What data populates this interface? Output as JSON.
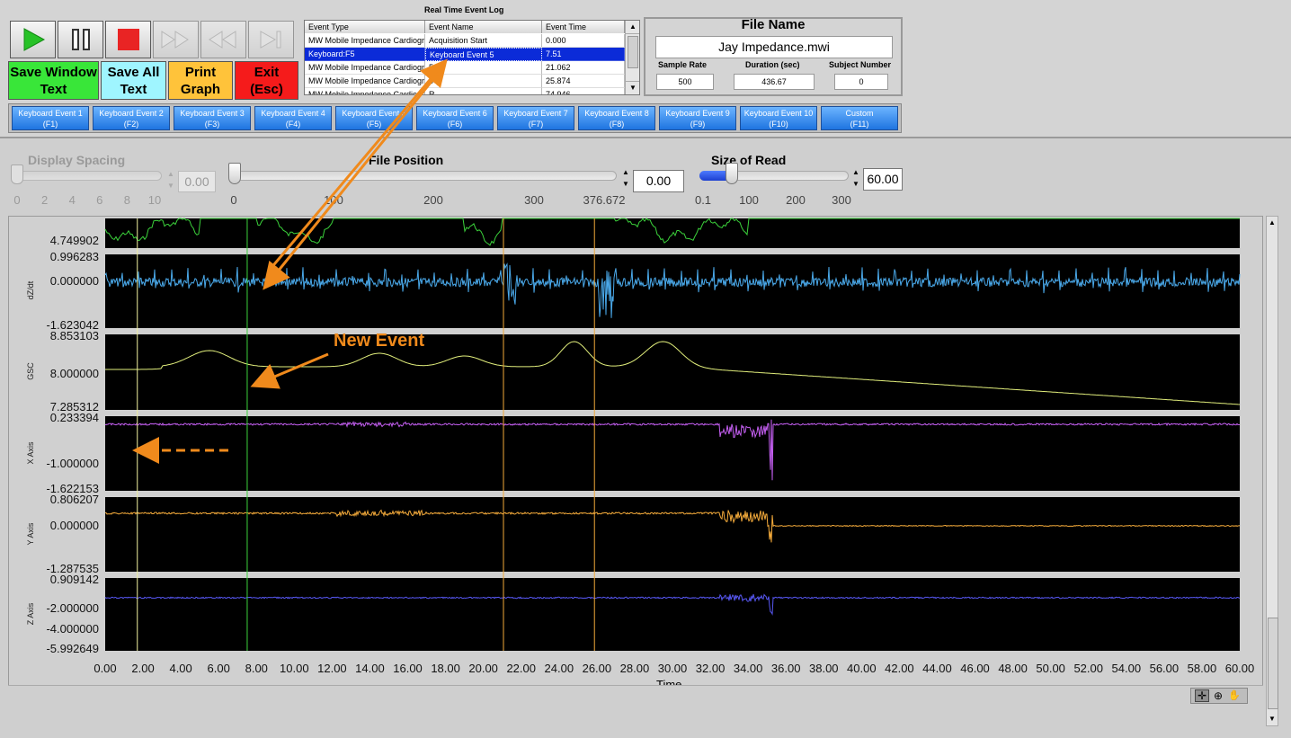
{
  "toolbar": {
    "play_icon": "play-icon",
    "pause_icon": "pause-icon",
    "stop_icon": "stop-icon",
    "ff_icon": "fast-forward-icon",
    "rw_icon": "rewind-icon",
    "end_icon": "skip-end-icon",
    "save_window_text": "Save Window Text",
    "save_all_text": "Save All Text",
    "print_graph": "Print Graph",
    "exit": "Exit (Esc)",
    "colors": {
      "save_window": "#39e639",
      "save_all": "#9ff5ff",
      "print": "#ffc33a",
      "exit": "#f51b1b"
    }
  },
  "event_log": {
    "title": "Real Time Event Log",
    "headers": [
      "Event Type",
      "Event Name",
      "Event Time"
    ],
    "rows": [
      [
        "MW Mobile Impedance Cardiogr",
        "Acquisition Start",
        "0.000"
      ],
      [
        "Keyboard:F5",
        "Keyboard Event 5",
        "7.51"
      ],
      [
        "MW Mobile Impedance Cardiogr",
        "5",
        "21.062"
      ],
      [
        "MW Mobile Impedance Cardiogr",
        "3",
        "25.874"
      ],
      [
        "MW Mobile Impedance Cardiogr",
        "R",
        "74.946"
      ]
    ],
    "selected_row": 1
  },
  "file_info": {
    "title": "File Name",
    "file_name": "Jay Impedance.mwi",
    "sample_rate_label": "Sample Rate",
    "sample_rate": "500",
    "duration_label": "Duration (sec)",
    "duration": "436.67",
    "subject_label": "Subject Number",
    "subject": "0"
  },
  "keyboard_events": [
    {
      "name": "Keyboard Event 1",
      "key": "(F1)"
    },
    {
      "name": "Keyboard Event 2",
      "key": "(F2)"
    },
    {
      "name": "Keyboard Event 3",
      "key": "(F3)"
    },
    {
      "name": "Keyboard Event 4",
      "key": "(F4)"
    },
    {
      "name": "Keyboard Event 5",
      "key": "(F5)"
    },
    {
      "name": "Keyboard Event 6",
      "key": "(F6)"
    },
    {
      "name": "Keyboard Event 7",
      "key": "(F7)"
    },
    {
      "name": "Keyboard Event 8",
      "key": "(F8)"
    },
    {
      "name": "Keyboard Event 9",
      "key": "(F9)"
    },
    {
      "name": "Keyboard Event 10",
      "key": "(F10)"
    },
    {
      "name": "Custom",
      "key": "(F11)"
    }
  ],
  "display_spacing": {
    "label": "Display Spacing",
    "value": "0.00",
    "ticks": [
      "0",
      "2",
      "4",
      "6",
      "8",
      "10"
    ],
    "level": 0
  },
  "file_position": {
    "label": "File Position",
    "value": "0.00",
    "ticks": [
      "0",
      "100",
      "200",
      "300",
      "376.672"
    ],
    "level": 0
  },
  "size_of_read": {
    "label": "Size of Read",
    "value": "60.00",
    "ticks": [
      "0.1",
      "100",
      "200",
      "300"
    ],
    "level": 60
  },
  "annotation": {
    "new_event": "New Event"
  },
  "graph": {
    "x_axis_label": "Time",
    "x_ticks": [
      "0.00",
      "2.00",
      "4.00",
      "6.00",
      "8.00",
      "10.00",
      "12.00",
      "14.00",
      "16.00",
      "18.00",
      "20.00",
      "22.00",
      "24.00",
      "26.00",
      "28.00",
      "30.00",
      "32.00",
      "34.00",
      "36.00",
      "38.00",
      "40.00",
      "42.00",
      "44.00",
      "46.00",
      "48.00",
      "50.00",
      "52.00",
      "54.00",
      "56.00",
      "58.00",
      "60.00"
    ],
    "channels": [
      {
        "name": "",
        "y_max": "",
        "y_mid": "",
        "y_min": "4.749902",
        "color": "#3bd23b"
      },
      {
        "name": "dZ/dt",
        "y_max": "0.996283",
        "y_mid": "0.000000",
        "y_min": "-1.623042",
        "color": "#4aa9ea"
      },
      {
        "name": "GSC",
        "y_max": "8.853103",
        "y_mid": "8.000000",
        "y_min": "7.285312",
        "color": "#e2ef7c"
      },
      {
        "name": "X Axis",
        "y_max": "0.233394",
        "y_mid": "-1.000000",
        "y_min": "-1.622153",
        "color": "#c35ef0"
      },
      {
        "name": "Y Axis",
        "y_max": "0.806207",
        "y_mid": "0.000000",
        "y_min": "-1.287535",
        "color": "#f2a93a"
      },
      {
        "name": "Z Axis",
        "y_max": "0.909142",
        "y_mid": "-2.000000",
        "y_mid2": "-4.000000",
        "y_min": "-5.992649",
        "color": "#5757f2"
      }
    ],
    "event_markers": [
      {
        "time": 1.7,
        "color": "#f0f0a0"
      },
      {
        "time": 7.51,
        "color": "#3bd23b"
      },
      {
        "time": 21.062,
        "color": "#f2a93a"
      },
      {
        "time": 25.874,
        "color": "#f2a93a"
      }
    ],
    "tools": [
      "crosshair-icon",
      "zoom-icon",
      "pan-hand-icon"
    ]
  }
}
